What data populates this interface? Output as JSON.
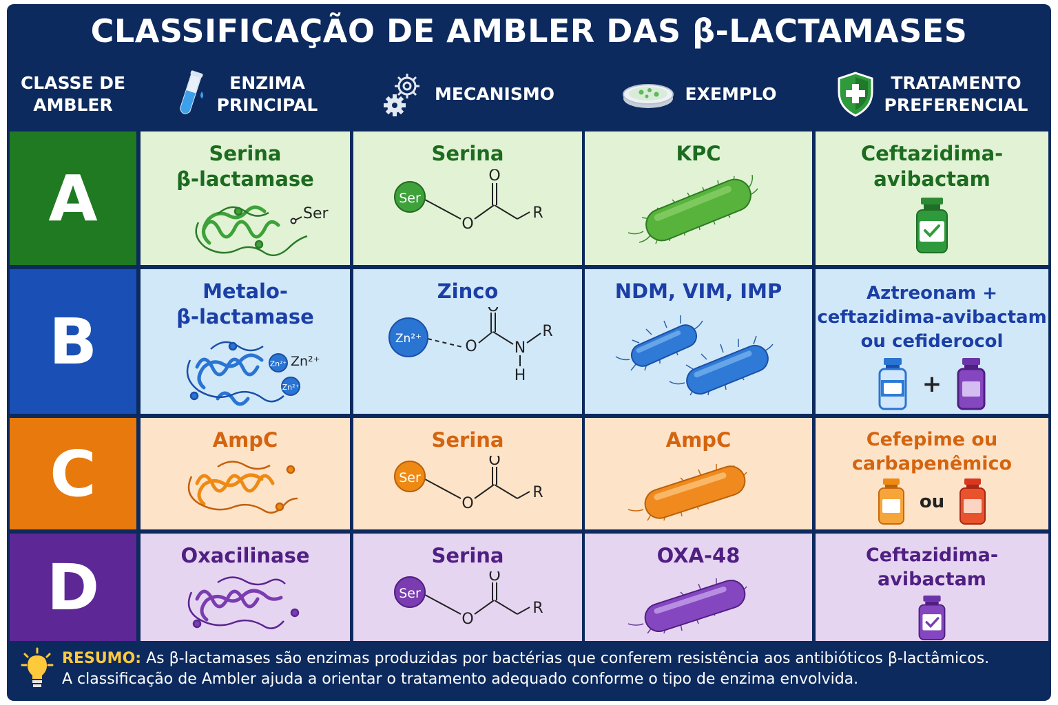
{
  "title": "CLASSIFICAÇÃO DE AMBLER DAS β-LACTAMASES",
  "headers": {
    "classe": [
      "CLASSE DE",
      "AMBLER"
    ],
    "enzima": [
      "ENZIMA",
      "PRINCIPAL"
    ],
    "mecanismo": [
      "MECANISMO"
    ],
    "exemplo": [
      "EXEMPLO"
    ],
    "tratamento": [
      "TRATAMENTO",
      "PREFERENCIAL"
    ]
  },
  "header_icons": [
    "test-tube-icon",
    "gears-icon",
    "petri-dish-icon",
    "shield-cross-icon"
  ],
  "rows": [
    {
      "letter": "A",
      "enzyme": [
        "Serina",
        "β-lactamase"
      ],
      "enzyme_label": "Ser",
      "mechanism": "Serina",
      "mech_atoms": {
        "center": "Ser",
        "o_link": "O",
        "o_top": "O",
        "r": "R"
      },
      "example": "KPC",
      "treatment": [
        "Ceftazidima-",
        "avibactam"
      ],
      "colors": {
        "dark": "#1f7a22",
        "light": "#e1f3d4",
        "text": "#1d6b20",
        "mol": "#3ea13a",
        "bact": "#57b33c"
      }
    },
    {
      "letter": "B",
      "enzyme": [
        "Metalo-",
        "β-lactamase"
      ],
      "enzyme_label": "Zn²⁺",
      "mechanism": "Zinco",
      "mech_atoms": {
        "center": "Zn²⁺",
        "o_link": "O",
        "o_top": "O",
        "n": "N",
        "h": "H",
        "r": "R"
      },
      "example": "NDM, VIM, IMP",
      "treatment": [
        "Aztreonam +",
        "ceftazidima-avibactam",
        "ou cefiderocol"
      ],
      "treatment_join": "+",
      "colors": {
        "dark": "#1a4fb5",
        "light": "#d1e8f8",
        "text": "#1b3fa6",
        "mol": "#2a74d2",
        "bact": "#2e7ad6"
      }
    },
    {
      "letter": "C",
      "enzyme": [
        "AmpC"
      ],
      "mechanism": "Serina",
      "mech_atoms": {
        "center": "Ser",
        "o_link": "O",
        "o_top": "O",
        "r": "R"
      },
      "example": "AmpC",
      "treatment": [
        "Cefepime ou",
        "carbapenêmico"
      ],
      "treatment_join": "ou",
      "colors": {
        "dark": "#e8790c",
        "light": "#fde3c8",
        "text": "#d4640f",
        "mol": "#ee8a14",
        "bact": "#f08a1e"
      }
    },
    {
      "letter": "D",
      "enzyme": [
        "Oxacilinase"
      ],
      "mechanism": "Serina",
      "mech_atoms": {
        "center": "Ser",
        "o_link": "O",
        "o_top": "O",
        "r": "R"
      },
      "example": "OXA-48",
      "treatment": [
        "Ceftazidima-",
        "avibactam"
      ],
      "colors": {
        "dark": "#5d2896",
        "light": "#e6d5f1",
        "text": "#4f1f82",
        "mol": "#7a3cb0",
        "bact": "#8447c0"
      }
    }
  ],
  "summary": {
    "label": "RESUMO:",
    "line1": "As β-lactamases são enzimas produzidas por bactérias que conferem resistência aos antibióticos β-lactâmicos.",
    "line2": "A classificação de Ambler ajuda a orientar o tratamento adequado conforme o tipo de enzima envolvida."
  },
  "accent_colors": {
    "navy": "#0d2a5e",
    "summary_label": "#ffc93c"
  }
}
